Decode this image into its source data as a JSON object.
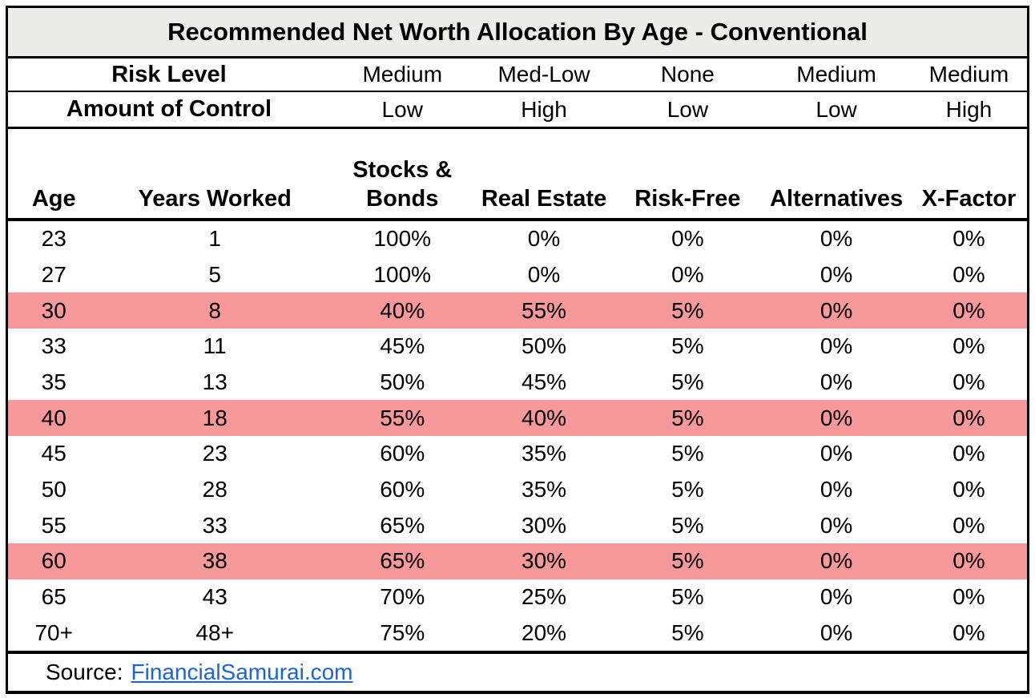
{
  "chart_data": {
    "type": "table",
    "title": "Recommended Net Worth Allocation By Age - Conventional",
    "header_rows": [
      {
        "label": "Risk Level",
        "values": [
          "Medium",
          "Med-Low",
          "None",
          "Medium",
          "Medium"
        ]
      },
      {
        "label": "Amount of Control",
        "values": [
          "Low",
          "High",
          "Low",
          "Low",
          "High"
        ]
      }
    ],
    "columns": [
      "Age",
      "Years Worked",
      "Stocks &\nBonds",
      "Real Estate",
      "Risk-Free",
      "Alternatives",
      "X-Factor"
    ],
    "rows": [
      {
        "cells": [
          "23",
          "1",
          "100%",
          "0%",
          "0%",
          "0%",
          "0%"
        ],
        "highlighted": false
      },
      {
        "cells": [
          "27",
          "5",
          "100%",
          "0%",
          "0%",
          "0%",
          "0%"
        ],
        "highlighted": false
      },
      {
        "cells": [
          "30",
          "8",
          "40%",
          "55%",
          "5%",
          "0%",
          "0%"
        ],
        "highlighted": true
      },
      {
        "cells": [
          "33",
          "11",
          "45%",
          "50%",
          "5%",
          "0%",
          "0%"
        ],
        "highlighted": false
      },
      {
        "cells": [
          "35",
          "13",
          "50%",
          "45%",
          "5%",
          "0%",
          "0%"
        ],
        "highlighted": false
      },
      {
        "cells": [
          "40",
          "18",
          "55%",
          "40%",
          "5%",
          "0%",
          "0%"
        ],
        "highlighted": true
      },
      {
        "cells": [
          "45",
          "23",
          "60%",
          "35%",
          "5%",
          "0%",
          "0%"
        ],
        "highlighted": false
      },
      {
        "cells": [
          "50",
          "28",
          "60%",
          "35%",
          "5%",
          "0%",
          "0%"
        ],
        "highlighted": false
      },
      {
        "cells": [
          "55",
          "33",
          "65%",
          "30%",
          "5%",
          "0%",
          "0%"
        ],
        "highlighted": false
      },
      {
        "cells": [
          "60",
          "38",
          "65%",
          "30%",
          "5%",
          "0%",
          "0%"
        ],
        "highlighted": true
      },
      {
        "cells": [
          "65",
          "43",
          "70%",
          "25%",
          "5%",
          "0%",
          "0%"
        ],
        "highlighted": false
      },
      {
        "cells": [
          "70+",
          "48+",
          "75%",
          "20%",
          "5%",
          "0%",
          "0%"
        ],
        "highlighted": false
      }
    ],
    "highlighted_ages": [
      "30",
      "40",
      "60"
    ],
    "source_prefix": "Source:",
    "source_link": "FinancialSamurai.com"
  },
  "colors": {
    "highlight_row": "#F7989B",
    "title_background": "#ECECEA",
    "link": "#1C63D8",
    "border": "#000000"
  }
}
